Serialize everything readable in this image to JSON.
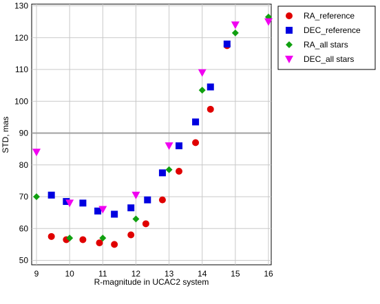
{
  "chart_data": {
    "type": "scatter",
    "xlabel": "R-magnitude in UCAC2 system",
    "ylabel": "STD, mas",
    "xlim": [
      9,
      16
    ],
    "ylim": [
      49,
      130
    ],
    "xticks": [
      "9",
      "10",
      "11",
      "12",
      "13",
      "14",
      "15",
      "16"
    ],
    "yticks": [
      "50",
      "60",
      "70",
      "80",
      "90",
      "100",
      "110",
      "120",
      "130"
    ],
    "grid": true,
    "legend_position": "right",
    "series": [
      {
        "name": "RA_reference",
        "marker": "circle",
        "color": "#e00000",
        "x": [
          9.45,
          9.9,
          10.4,
          10.9,
          11.35,
          11.85,
          12.3,
          12.8,
          13.3,
          13.8,
          14.25,
          14.75
        ],
        "y": [
          57.5,
          56.5,
          56.5,
          55.5,
          55.0,
          58.0,
          61.5,
          69.0,
          78.0,
          87.0,
          97.5,
          117.5
        ]
      },
      {
        "name": "DEC_reference",
        "marker": "square",
        "color": "#0000e0",
        "x": [
          9.45,
          9.9,
          10.4,
          10.85,
          11.35,
          11.85,
          12.35,
          12.8,
          13.3,
          13.8,
          14.25,
          14.75
        ],
        "y": [
          70.5,
          68.5,
          68.0,
          65.5,
          64.5,
          66.5,
          69.0,
          77.5,
          86.0,
          93.5,
          104.5,
          118.0
        ]
      },
      {
        "name": "RA_all stars",
        "marker": "diamond",
        "color": "#10a010",
        "x": [
          9.0,
          10.0,
          11.0,
          12.0,
          13.0,
          14.0,
          15.0,
          16.0
        ],
        "y": [
          70.0,
          57.0,
          57.0,
          63.0,
          78.5,
          103.5,
          121.5,
          126.5
        ]
      },
      {
        "name": "DEC_all stars",
        "marker": "triangle-down",
        "color": "#f000f0",
        "x": [
          9.0,
          10.0,
          11.0,
          12.0,
          13.0,
          14.0,
          15.0,
          16.0
        ],
        "y": [
          84.0,
          68.0,
          66.0,
          70.5,
          86.0,
          109.0,
          124.0,
          125.0
        ]
      }
    ]
  }
}
